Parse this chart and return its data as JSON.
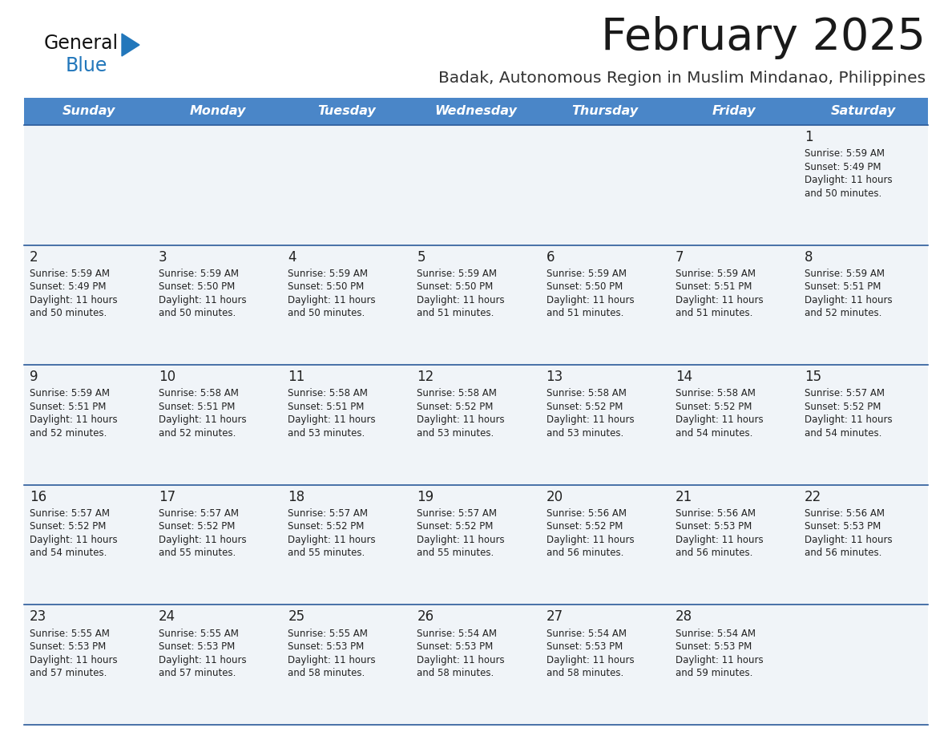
{
  "title": "February 2025",
  "subtitle": "Badak, Autonomous Region in Muslim Mindanao, Philippines",
  "days_of_week": [
    "Sunday",
    "Monday",
    "Tuesday",
    "Wednesday",
    "Thursday",
    "Friday",
    "Saturday"
  ],
  "header_bg": "#4a86c8",
  "header_text": "#ffffff",
  "cell_bg": "#f0f4f8",
  "separator_color": "#2a5a9a",
  "text_color": "#222222",
  "day_num_color": "#222222",
  "title_color": "#1a1a1a",
  "subtitle_color": "#333333",
  "logo_general_color": "#111111",
  "logo_blue_color": "#2277bb",
  "calendar_data": [
    [
      null,
      null,
      null,
      null,
      null,
      null,
      {
        "day": 1,
        "sunrise": "5:59 AM",
        "sunset": "5:49 PM",
        "daylight_hours": 11,
        "daylight_minutes": 50
      }
    ],
    [
      {
        "day": 2,
        "sunrise": "5:59 AM",
        "sunset": "5:49 PM",
        "daylight_hours": 11,
        "daylight_minutes": 50
      },
      {
        "day": 3,
        "sunrise": "5:59 AM",
        "sunset": "5:50 PM",
        "daylight_hours": 11,
        "daylight_minutes": 50
      },
      {
        "day": 4,
        "sunrise": "5:59 AM",
        "sunset": "5:50 PM",
        "daylight_hours": 11,
        "daylight_minutes": 50
      },
      {
        "day": 5,
        "sunrise": "5:59 AM",
        "sunset": "5:50 PM",
        "daylight_hours": 11,
        "daylight_minutes": 51
      },
      {
        "day": 6,
        "sunrise": "5:59 AM",
        "sunset": "5:50 PM",
        "daylight_hours": 11,
        "daylight_minutes": 51
      },
      {
        "day": 7,
        "sunrise": "5:59 AM",
        "sunset": "5:51 PM",
        "daylight_hours": 11,
        "daylight_minutes": 51
      },
      {
        "day": 8,
        "sunrise": "5:59 AM",
        "sunset": "5:51 PM",
        "daylight_hours": 11,
        "daylight_minutes": 52
      }
    ],
    [
      {
        "day": 9,
        "sunrise": "5:59 AM",
        "sunset": "5:51 PM",
        "daylight_hours": 11,
        "daylight_minutes": 52
      },
      {
        "day": 10,
        "sunrise": "5:58 AM",
        "sunset": "5:51 PM",
        "daylight_hours": 11,
        "daylight_minutes": 52
      },
      {
        "day": 11,
        "sunrise": "5:58 AM",
        "sunset": "5:51 PM",
        "daylight_hours": 11,
        "daylight_minutes": 53
      },
      {
        "day": 12,
        "sunrise": "5:58 AM",
        "sunset": "5:52 PM",
        "daylight_hours": 11,
        "daylight_minutes": 53
      },
      {
        "day": 13,
        "sunrise": "5:58 AM",
        "sunset": "5:52 PM",
        "daylight_hours": 11,
        "daylight_minutes": 53
      },
      {
        "day": 14,
        "sunrise": "5:58 AM",
        "sunset": "5:52 PM",
        "daylight_hours": 11,
        "daylight_minutes": 54
      },
      {
        "day": 15,
        "sunrise": "5:57 AM",
        "sunset": "5:52 PM",
        "daylight_hours": 11,
        "daylight_minutes": 54
      }
    ],
    [
      {
        "day": 16,
        "sunrise": "5:57 AM",
        "sunset": "5:52 PM",
        "daylight_hours": 11,
        "daylight_minutes": 54
      },
      {
        "day": 17,
        "sunrise": "5:57 AM",
        "sunset": "5:52 PM",
        "daylight_hours": 11,
        "daylight_minutes": 55
      },
      {
        "day": 18,
        "sunrise": "5:57 AM",
        "sunset": "5:52 PM",
        "daylight_hours": 11,
        "daylight_minutes": 55
      },
      {
        "day": 19,
        "sunrise": "5:57 AM",
        "sunset": "5:52 PM",
        "daylight_hours": 11,
        "daylight_minutes": 55
      },
      {
        "day": 20,
        "sunrise": "5:56 AM",
        "sunset": "5:52 PM",
        "daylight_hours": 11,
        "daylight_minutes": 56
      },
      {
        "day": 21,
        "sunrise": "5:56 AM",
        "sunset": "5:53 PM",
        "daylight_hours": 11,
        "daylight_minutes": 56
      },
      {
        "day": 22,
        "sunrise": "5:56 AM",
        "sunset": "5:53 PM",
        "daylight_hours": 11,
        "daylight_minutes": 56
      }
    ],
    [
      {
        "day": 23,
        "sunrise": "5:55 AM",
        "sunset": "5:53 PM",
        "daylight_hours": 11,
        "daylight_minutes": 57
      },
      {
        "day": 24,
        "sunrise": "5:55 AM",
        "sunset": "5:53 PM",
        "daylight_hours": 11,
        "daylight_minutes": 57
      },
      {
        "day": 25,
        "sunrise": "5:55 AM",
        "sunset": "5:53 PM",
        "daylight_hours": 11,
        "daylight_minutes": 58
      },
      {
        "day": 26,
        "sunrise": "5:54 AM",
        "sunset": "5:53 PM",
        "daylight_hours": 11,
        "daylight_minutes": 58
      },
      {
        "day": 27,
        "sunrise": "5:54 AM",
        "sunset": "5:53 PM",
        "daylight_hours": 11,
        "daylight_minutes": 58
      },
      {
        "day": 28,
        "sunrise": "5:54 AM",
        "sunset": "5:53 PM",
        "daylight_hours": 11,
        "daylight_minutes": 59
      },
      null
    ]
  ]
}
